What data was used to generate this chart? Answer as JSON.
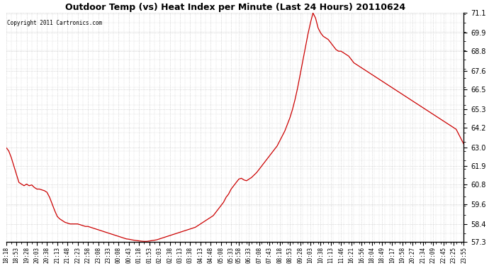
{
  "title": "Outdoor Temp (vs) Heat Index per Minute (Last 24 Hours) 20110624",
  "copyright": "Copyright 2011 Cartronics.com",
  "line_color": "#cc0000",
  "bg_color": "#ffffff",
  "grid_color": "#bbbbbb",
  "ylim": [
    57.3,
    71.1
  ],
  "yticks": [
    57.3,
    58.4,
    59.6,
    60.8,
    61.9,
    63.0,
    64.2,
    65.3,
    66.5,
    67.6,
    68.8,
    69.9,
    71.1
  ],
  "xtick_labels": [
    "18:18",
    "18:53",
    "19:28",
    "20:03",
    "20:38",
    "21:13",
    "21:48",
    "22:23",
    "22:58",
    "23:08",
    "23:33",
    "00:08",
    "00:43",
    "01:18",
    "01:53",
    "02:03",
    "02:38",
    "03:13",
    "03:38",
    "04:13",
    "04:48",
    "05:08",
    "05:33",
    "05:58",
    "06:33",
    "07:08",
    "07:43",
    "08:18",
    "08:53",
    "09:28",
    "10:03",
    "10:38",
    "11:13",
    "11:46",
    "16:21",
    "16:56",
    "18:04",
    "18:49",
    "19:17",
    "19:58",
    "20:27",
    "21:34",
    "22:09",
    "22:45",
    "23:25",
    "23:55"
  ],
  "data_y": [
    63.0,
    62.8,
    62.4,
    61.9,
    61.4,
    60.9,
    60.8,
    60.7,
    60.8,
    60.7,
    60.75,
    60.6,
    60.5,
    60.5,
    60.45,
    60.4,
    60.3,
    60.0,
    59.6,
    59.2,
    58.85,
    58.7,
    58.6,
    58.5,
    58.45,
    58.4,
    58.4,
    58.4,
    58.4,
    58.35,
    58.3,
    58.25,
    58.25,
    58.2,
    58.15,
    58.1,
    58.05,
    58.0,
    57.95,
    57.9,
    57.85,
    57.8,
    57.75,
    57.7,
    57.65,
    57.6,
    57.55,
    57.5,
    57.48,
    57.45,
    57.42,
    57.4,
    57.38,
    57.36,
    57.35,
    57.35,
    57.37,
    57.4,
    57.42,
    57.45,
    57.5,
    57.55,
    57.6,
    57.65,
    57.7,
    57.75,
    57.8,
    57.85,
    57.9,
    57.95,
    58.0,
    58.05,
    58.1,
    58.15,
    58.2,
    58.3,
    58.4,
    58.5,
    58.6,
    58.7,
    58.8,
    58.9,
    59.1,
    59.3,
    59.5,
    59.7,
    60.0,
    60.2,
    60.5,
    60.7,
    60.9,
    61.1,
    61.15,
    61.05,
    61.0,
    61.1,
    61.2,
    61.35,
    61.5,
    61.7,
    61.9,
    62.1,
    62.3,
    62.5,
    62.7,
    62.9,
    63.1,
    63.4,
    63.7,
    64.0,
    64.4,
    64.8,
    65.3,
    65.9,
    66.6,
    67.4,
    68.2,
    69.0,
    69.8,
    70.5,
    71.1,
    70.8,
    70.2,
    69.9,
    69.7,
    69.6,
    69.5,
    69.3,
    69.1,
    68.9,
    68.8,
    68.8,
    68.7,
    68.6,
    68.5,
    68.3,
    68.1,
    68.0,
    67.9,
    67.8,
    67.7,
    67.6,
    67.5,
    67.4,
    67.3,
    67.2,
    67.1,
    67.0,
    66.9,
    66.8,
    66.7,
    66.6,
    66.5,
    66.4,
    66.3,
    66.2,
    66.1,
    66.0,
    65.9,
    65.8,
    65.7,
    65.6,
    65.5,
    65.4,
    65.3,
    65.2,
    65.1,
    65.0,
    64.9,
    64.8,
    64.7,
    64.6,
    64.5,
    64.4,
    64.3,
    64.2,
    64.1,
    63.8,
    63.5,
    63.2
  ],
  "figwidth": 6.9,
  "figheight": 3.75,
  "dpi": 100
}
